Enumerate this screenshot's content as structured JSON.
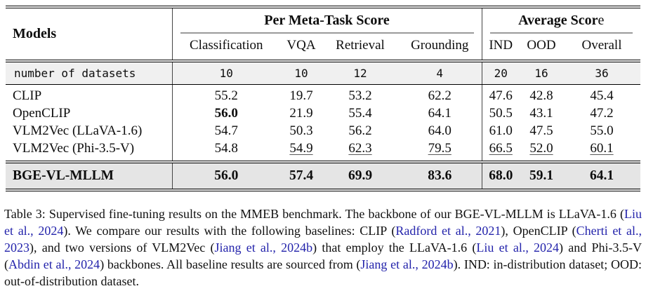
{
  "colors": {
    "citation_blue": "#2323ab",
    "counts_row_bg": "#f0f0f0",
    "highlight_row_bg": "#e5e5e5",
    "rule_black": "#000000",
    "cmidrule_gray": "#9a9a9a"
  },
  "table": {
    "models_header": "Models",
    "group_meta": "Per Meta-Task Score",
    "group_avg_bold": "Average Scor",
    "group_avg_tail": "e",
    "col_headers": [
      "Classification",
      "VQA",
      "Retrieval",
      "Grounding",
      "IND",
      "OOD",
      "Overall"
    ],
    "counts": {
      "label": "number of datasets",
      "values": [
        "10",
        "10",
        "12",
        "4",
        "20",
        "16",
        "36"
      ]
    },
    "rows": [
      {
        "model": "CLIP",
        "values": [
          "55.2",
          "19.7",
          "53.2",
          "62.2",
          "47.6",
          "42.8",
          "45.4"
        ]
      },
      {
        "model": "OpenCLIP",
        "values": [
          "56.0",
          "21.9",
          "55.4",
          "64.1",
          "50.5",
          "43.1",
          "47.2"
        ]
      },
      {
        "model": "VLM2Vec (LLaVA-1.6)",
        "values": [
          "54.7",
          "50.3",
          "56.2",
          "64.0",
          "61.0",
          "47.5",
          "55.0"
        ]
      },
      {
        "model": "VLM2Vec (Phi-3.5-V)",
        "values": [
          "54.8",
          "54.9",
          "62.3",
          "79.5",
          "66.5",
          "52.0",
          "60.1"
        ]
      }
    ],
    "highlight_row": {
      "model": "BGE-VL-MLLM",
      "values": [
        "56.0",
        "57.4",
        "69.9",
        "83.6",
        "68.0",
        "59.1",
        "64.1"
      ]
    }
  },
  "caption": {
    "segments": [
      {
        "t": "Table 3:  Supervised fine-tuning results on the MMEB benchmark.  The backbone of our BGE-VL-MLLM is LLaVA-1.6 (",
        "cite": false
      },
      {
        "t": "Liu et al., 2024",
        "cite": true
      },
      {
        "t": "). We compare our results with the following baselines: CLIP (",
        "cite": false
      },
      {
        "t": "Radford et al., 2021",
        "cite": true
      },
      {
        "t": "), OpenCLIP (",
        "cite": false
      },
      {
        "t": "Cherti et al., 2023",
        "cite": true
      },
      {
        "t": "), and two versions of VLM2Vec (",
        "cite": false
      },
      {
        "t": "Jiang et al., 2024b",
        "cite": true
      },
      {
        "t": ") that employ the LLaVA-1.6 (",
        "cite": false
      },
      {
        "t": "Liu et al., 2024",
        "cite": true
      },
      {
        "t": ") and Phi-3.5-V (",
        "cite": false
      },
      {
        "t": "Abdin et al., 2024",
        "cite": true
      },
      {
        "t": ") backbones.  All baseline results are sourced from (",
        "cite": false
      },
      {
        "t": "Jiang et al., 2024b",
        "cite": true
      },
      {
        "t": ").  IND: in-distribution dataset; OOD: out-of-distribution dataset.",
        "cite": false
      }
    ]
  }
}
